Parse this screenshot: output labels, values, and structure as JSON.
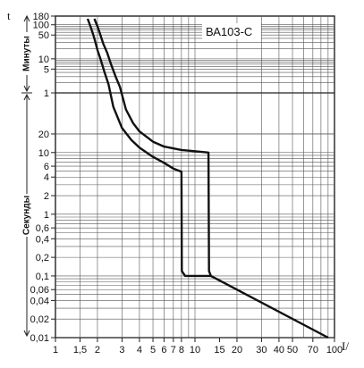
{
  "chart_data": {
    "type": "line",
    "title": "ВА103-С",
    "xlabel": "I/",
    "ylabel": "t",
    "x_scale": "log",
    "xlim": [
      1,
      100
    ],
    "x_ticks": [
      1,
      1.5,
      2,
      3,
      4,
      5,
      6,
      7,
      8,
      10,
      15,
      20,
      30,
      40,
      50,
      70,
      100
    ],
    "x_tick_labels": [
      "1",
      "1,5",
      "2",
      "3",
      "4",
      "5",
      "6",
      "7",
      "8",
      "10",
      "15",
      "20",
      "30",
      "40",
      "50",
      "70",
      "100"
    ],
    "y_scale": "log",
    "y_sections": [
      {
        "name": "Минуты",
        "unit": "min",
        "range": [
          1,
          180
        ],
        "ticks": [
          180,
          100,
          50,
          10,
          5,
          1
        ],
        "tick_labels": [
          "180",
          "100",
          "50",
          "10",
          "5",
          "1"
        ]
      },
      {
        "name": "Секунды",
        "unit": "s",
        "range": [
          0.01,
          60
        ],
        "ticks": [
          20,
          10,
          6,
          4,
          2,
          1,
          0.6,
          0.4,
          0.2,
          0.1,
          0.06,
          0.04,
          0.02,
          0.01
        ],
        "tick_labels": [
          "20",
          "10",
          "6",
          "4",
          "2",
          "1",
          "0,6",
          "0,4",
          "0,2",
          "0,1",
          "0,06",
          "0,04",
          "0,02",
          "0,01"
        ]
      }
    ],
    "grid": true,
    "legend": "none",
    "series": [
      {
        "points": [
          {
            "x": 1.9,
            "t": 150,
            "unit": "min"
          },
          {
            "x": 2.0,
            "t": 90,
            "unit": "min"
          },
          {
            "x": 2.1,
            "t": 50,
            "unit": "min"
          },
          {
            "x": 2.2,
            "t": 28,
            "unit": "min"
          },
          {
            "x": 2.35,
            "t": 15,
            "unit": "min"
          },
          {
            "x": 2.5,
            "t": 7,
            "unit": "min"
          },
          {
            "x": 2.7,
            "t": 3,
            "unit": "min"
          },
          {
            "x": 2.9,
            "t": 1.5,
            "unit": "min"
          },
          {
            "x": 3.2,
            "t": 50,
            "unit": "s"
          },
          {
            "x": 3.6,
            "t": 30,
            "unit": "s"
          },
          {
            "x": 4.0,
            "t": 22,
            "unit": "s"
          },
          {
            "x": 5.0,
            "t": 15,
            "unit": "s"
          },
          {
            "x": 6.0,
            "t": 12.5,
            "unit": "s"
          },
          {
            "x": 8.0,
            "t": 11,
            "unit": "s"
          },
          {
            "x": 10.0,
            "t": 10.5,
            "unit": "s"
          },
          {
            "x": 12.5,
            "t": 10,
            "unit": "s"
          },
          {
            "x": 12.6,
            "t": 0.12,
            "unit": "s"
          },
          {
            "x": 13.0,
            "t": 0.1,
            "unit": "s"
          },
          {
            "x": 90.0,
            "t": 0.01,
            "unit": "s"
          }
        ]
      },
      {
        "points": [
          {
            "x": 1.7,
            "t": 150,
            "unit": "min"
          },
          {
            "x": 1.8,
            "t": 80,
            "unit": "min"
          },
          {
            "x": 1.9,
            "t": 40,
            "unit": "min"
          },
          {
            "x": 2.0,
            "t": 18,
            "unit": "min"
          },
          {
            "x": 2.1,
            "t": 10,
            "unit": "min"
          },
          {
            "x": 2.25,
            "t": 4,
            "unit": "min"
          },
          {
            "x": 2.4,
            "t": 1.8,
            "unit": "min"
          },
          {
            "x": 2.6,
            "t": 55,
            "unit": "s"
          },
          {
            "x": 3.0,
            "t": 25,
            "unit": "s"
          },
          {
            "x": 3.5,
            "t": 16,
            "unit": "s"
          },
          {
            "x": 4.0,
            "t": 12,
            "unit": "s"
          },
          {
            "x": 5.0,
            "t": 8.5,
            "unit": "s"
          },
          {
            "x": 6.0,
            "t": 6.8,
            "unit": "s"
          },
          {
            "x": 7.0,
            "t": 5.5,
            "unit": "s"
          },
          {
            "x": 8.0,
            "t": 4.9,
            "unit": "s"
          },
          {
            "x": 8.05,
            "t": 0.12,
            "unit": "s"
          },
          {
            "x": 8.5,
            "t": 0.1,
            "unit": "s"
          },
          {
            "x": 13.0,
            "t": 0.1,
            "unit": "s"
          }
        ]
      }
    ]
  }
}
